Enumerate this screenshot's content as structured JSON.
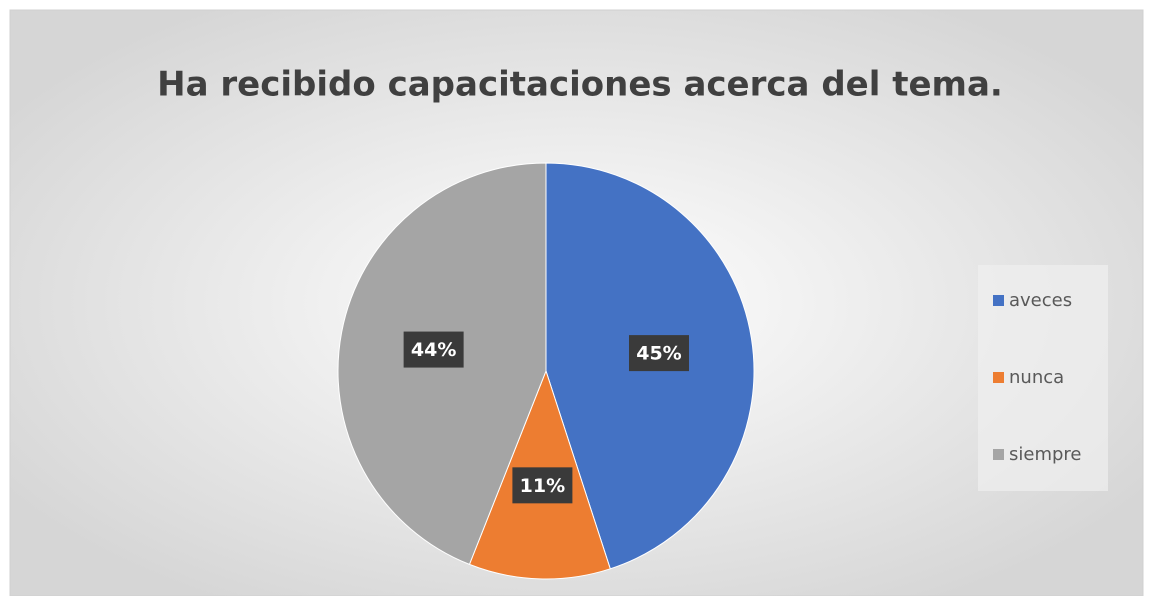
{
  "chart_data": {
    "type": "pie",
    "title": "Ha recibido capacitaciones  acerca del tema.",
    "categories": [
      "aveces",
      "nunca",
      "siempre"
    ],
    "values": [
      45,
      11,
      44
    ],
    "value_labels": [
      "45%",
      "11%",
      "44%"
    ],
    "colors": [
      "#4472c4",
      "#ed7d31",
      "#a5a5a5"
    ],
    "legend": "right"
  }
}
